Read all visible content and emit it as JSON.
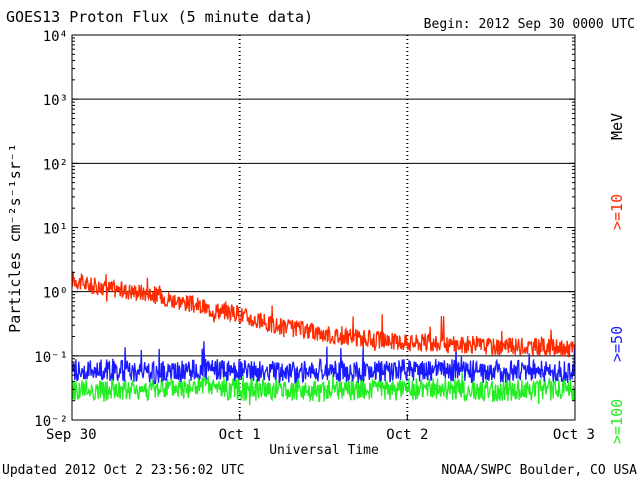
{
  "chart_data": {
    "type": "line",
    "title": "GOES13 Proton Flux (5 minute data)",
    "begin_label": "Begin: 2012 Sep 30 0000 UTC",
    "xlabel": "Universal Time",
    "ylabel": "Particles cm⁻²s⁻¹sr⁻¹",
    "y_scale": "log",
    "ylim": [
      0.01,
      10000
    ],
    "y_ticks": [
      {
        "value": 0.01,
        "label": "10⁻²"
      },
      {
        "value": 0.1,
        "label": "10⁻¹"
      },
      {
        "value": 1,
        "label": "10⁰"
      },
      {
        "value": 10,
        "label": "10¹"
      },
      {
        "value": 100,
        "label": "10²"
      },
      {
        "value": 1000,
        "label": "10³"
      },
      {
        "value": 10000,
        "label": "10⁴"
      }
    ],
    "x_ticks": [
      {
        "day": 0,
        "label": "Sep 30"
      },
      {
        "day": 1,
        "label": "Oct 1"
      },
      {
        "day": 2,
        "label": "Oct 2"
      },
      {
        "day": 3,
        "label": "Oct 3"
      }
    ],
    "thresholds": [
      {
        "value": 1000,
        "style": "solid"
      },
      {
        "value": 100,
        "style": "solid"
      },
      {
        "value": 10,
        "style": "dashed"
      },
      {
        "value": 1,
        "style": "solid"
      },
      {
        "value": 0.1,
        "style": "solid"
      }
    ],
    "energy_unit": "MeV",
    "series": [
      {
        "name": ">=10",
        "color": "#ff2a00",
        "x": [
          0.0,
          0.1,
          0.2,
          0.3,
          0.4,
          0.5,
          0.6,
          0.7,
          0.8,
          0.9,
          1.0,
          1.1,
          1.2,
          1.3,
          1.4,
          1.5,
          1.6,
          1.7,
          1.8,
          1.9,
          2.0,
          2.1,
          2.2,
          2.3,
          2.4,
          2.5,
          2.6,
          2.7,
          2.8,
          2.9,
          3.0
        ],
        "y": [
          1.6,
          1.25,
          1.15,
          1.05,
          1.0,
          0.9,
          0.75,
          0.65,
          0.55,
          0.5,
          0.45,
          0.35,
          0.3,
          0.27,
          0.25,
          0.22,
          0.2,
          0.19,
          0.18,
          0.17,
          0.16,
          0.16,
          0.15,
          0.15,
          0.15,
          0.14,
          0.14,
          0.14,
          0.14,
          0.13,
          0.13
        ]
      },
      {
        "name": ">=50",
        "color": "#1a1aff",
        "x": [
          0.0,
          0.25,
          0.5,
          0.75,
          1.0,
          1.25,
          1.5,
          1.75,
          2.0,
          2.25,
          2.5,
          2.75,
          3.0
        ],
        "y": [
          0.06,
          0.06,
          0.055,
          0.06,
          0.06,
          0.055,
          0.06,
          0.055,
          0.06,
          0.06,
          0.055,
          0.06,
          0.055
        ]
      },
      {
        "name": ">=100",
        "color": "#22ee22",
        "x": [
          0.0,
          0.25,
          0.5,
          0.75,
          1.0,
          1.25,
          1.5,
          1.75,
          2.0,
          2.25,
          2.5,
          2.75,
          3.0
        ],
        "y": [
          0.03,
          0.028,
          0.03,
          0.032,
          0.03,
          0.03,
          0.028,
          0.03,
          0.03,
          0.03,
          0.028,
          0.03,
          0.03
        ]
      }
    ]
  },
  "footer": {
    "updated": "Updated 2012 Oct  2 23:56:02 UTC",
    "source": "NOAA/SWPC Boulder, CO USA"
  }
}
